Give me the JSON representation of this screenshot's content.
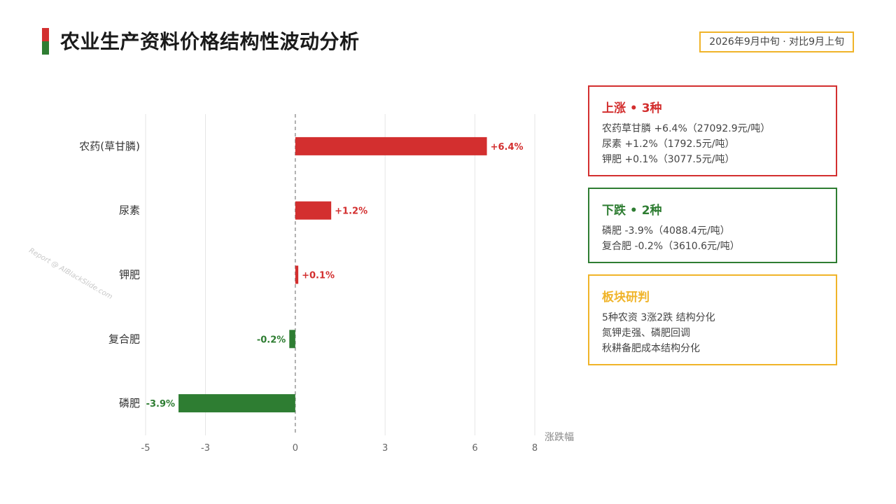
{
  "colors": {
    "up": "#D32F2F",
    "down": "#2E7D32",
    "accent": "#F0B429",
    "grid": "#e6e6e6",
    "axis": "#999999"
  },
  "header": {
    "title": "农业生产资料价格结构性波动分析",
    "date_badge": "2026年9月中旬 · 对比9月上旬"
  },
  "watermark": "Report @ AIBlackSlide.com",
  "chart_data": {
    "type": "bar",
    "orientation": "horizontal",
    "categories": [
      "农药(草甘膦)",
      "尿素",
      "钾肥",
      "复合肥",
      "磷肥"
    ],
    "values": [
      6.4,
      1.2,
      0.1,
      -0.2,
      -3.9
    ],
    "data_labels": [
      "+6.4%",
      "+1.2%",
      "+0.1%",
      "-0.2%",
      "-3.9%"
    ],
    "xlim": [
      -5,
      8
    ],
    "xticks": [
      -5,
      -3,
      0,
      3,
      6,
      8
    ],
    "xtick_labels": [
      "-5",
      "-3",
      "0",
      "3",
      "6",
      "8"
    ],
    "xlabel": "涨跌幅",
    "ylabel": "",
    "grid": true,
    "zero_line": "dashed"
  },
  "cards": {
    "rise": {
      "title": "上涨 • 3种",
      "lines": [
        "农药草甘膦 +6.4%（27092.9元/吨）",
        "尿素 +1.2%（1792.5元/吨）",
        "钾肥 +0.1%（3077.5元/吨）"
      ]
    },
    "fall": {
      "title": "下跌 • 2种",
      "lines": [
        "磷肥 -3.9%（4088.4元/吨）",
        "复合肥 -0.2%（3610.6元/吨）"
      ]
    },
    "judge": {
      "title": "板块研判",
      "lines": [
        "5种农资 3涨2跌 结构分化",
        "氮钾走强、磷肥回调",
        "秋耕备肥成本结构分化"
      ]
    }
  }
}
